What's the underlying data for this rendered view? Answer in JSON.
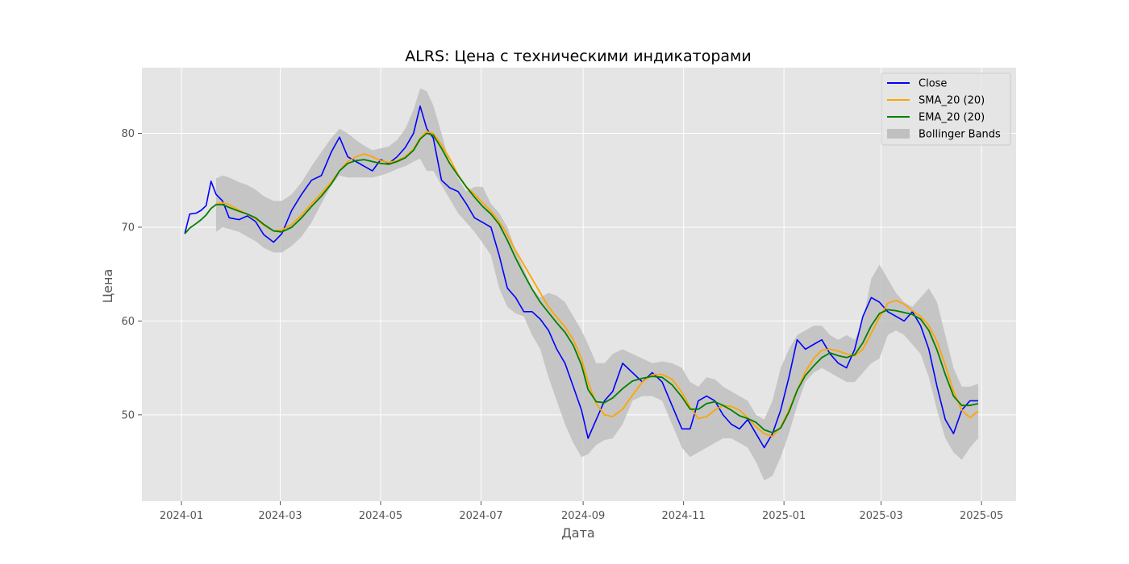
{
  "chart_data": {
    "type": "line",
    "title": "ALRS: Цена с техническими индикаторами",
    "xlabel": "Дата",
    "ylabel": "Цена",
    "x_tick_labels": [
      "2024-01",
      "2024-03",
      "2024-05",
      "2024-07",
      "2024-09",
      "2024-11",
      "2025-01",
      "2025-03",
      "2025-05"
    ],
    "y_tick_labels": [
      "50",
      "60",
      "70",
      "80"
    ],
    "xlim": [
      "2023-12-08",
      "2025-05-22"
    ],
    "ylim": [
      40.8,
      87.0
    ],
    "grid": true,
    "legend_position": "top-right",
    "x": [
      "2024-01-03",
      "2024-01-06",
      "2024-01-10",
      "2024-01-13",
      "2024-01-16",
      "2024-01-19",
      "2024-01-22",
      "2024-01-26",
      "2024-01-30",
      "2024-02-05",
      "2024-02-10",
      "2024-02-15",
      "2024-02-20",
      "2024-02-26",
      "2024-03-02",
      "2024-03-08",
      "2024-03-14",
      "2024-03-20",
      "2024-03-26",
      "2024-04-01",
      "2024-04-06",
      "2024-04-11",
      "2024-04-16",
      "2024-04-21",
      "2024-04-26",
      "2024-05-01",
      "2024-05-06",
      "2024-05-11",
      "2024-05-16",
      "2024-05-21",
      "2024-05-25",
      "2024-05-29",
      "2024-06-02",
      "2024-06-07",
      "2024-06-12",
      "2024-06-17",
      "2024-06-22",
      "2024-06-27",
      "2024-07-02",
      "2024-07-07",
      "2024-07-12",
      "2024-07-17",
      "2024-07-22",
      "2024-07-27",
      "2024-08-01",
      "2024-08-06",
      "2024-08-11",
      "2024-08-16",
      "2024-08-21",
      "2024-08-26",
      "2024-08-31",
      "2024-09-04",
      "2024-09-09",
      "2024-09-14",
      "2024-09-19",
      "2024-09-25",
      "2024-10-01",
      "2024-10-07",
      "2024-10-13",
      "2024-10-19",
      "2024-10-25",
      "2024-10-31",
      "2024-11-05",
      "2024-11-10",
      "2024-11-15",
      "2024-11-20",
      "2024-11-25",
      "2024-11-30",
      "2024-12-05",
      "2024-12-10",
      "2024-12-15",
      "2024-12-20",
      "2024-12-25",
      "2024-12-30",
      "2025-01-04",
      "2025-01-09",
      "2025-01-14",
      "2025-01-19",
      "2025-01-24",
      "2025-01-29",
      "2025-02-03",
      "2025-02-08",
      "2025-02-13",
      "2025-02-18",
      "2025-02-23",
      "2025-02-28",
      "2025-03-05",
      "2025-03-10",
      "2025-03-15",
      "2025-03-20",
      "2025-03-25",
      "2025-03-30",
      "2025-04-04",
      "2025-04-09",
      "2025-04-14",
      "2025-04-19",
      "2025-04-24",
      "2025-04-29"
    ],
    "series": [
      {
        "name": "Close",
        "color": "#0000ff",
        "values": [
          69.3,
          71.4,
          71.5,
          71.8,
          72.3,
          74.9,
          73.5,
          72.8,
          71.0,
          70.8,
          71.2,
          70.6,
          69.2,
          68.4,
          69.3,
          71.8,
          73.5,
          75.0,
          75.5,
          78.0,
          79.6,
          77.5,
          77.0,
          76.5,
          76.0,
          77.2,
          76.8,
          77.5,
          78.5,
          80.0,
          82.9,
          80.5,
          79.5,
          75.0,
          74.2,
          73.8,
          72.5,
          71.0,
          70.5,
          70.0,
          67.0,
          63.5,
          62.5,
          61.0,
          61.0,
          60.2,
          59.0,
          57.0,
          55.5,
          53.0,
          50.5,
          47.5,
          49.5,
          51.5,
          52.5,
          55.5,
          54.5,
          53.5,
          54.5,
          53.5,
          51.0,
          48.5,
          48.5,
          51.5,
          52.0,
          51.5,
          50.0,
          49.0,
          48.5,
          49.5,
          48.0,
          46.5,
          48.0,
          50.5,
          54.0,
          58.0,
          57.0,
          57.5,
          58.0,
          56.5,
          55.5,
          55.0,
          57.0,
          60.5,
          62.5,
          62.0,
          61.0,
          60.5,
          60.0,
          61.0,
          59.5,
          57.0,
          53.0,
          49.5,
          48.0,
          50.5,
          51.5,
          51.5
        ]
      },
      {
        "name": "SMA_20 (20)",
        "color": "#ffa500",
        "values": [
          null,
          null,
          null,
          null,
          null,
          null,
          72.5,
          72.6,
          72.4,
          71.8,
          71.4,
          70.9,
          70.2,
          69.6,
          69.7,
          70.3,
          71.3,
          72.5,
          73.6,
          74.8,
          76.0,
          77.0,
          77.5,
          77.8,
          77.5,
          77.1,
          76.9,
          77.1,
          77.5,
          78.3,
          79.5,
          80.2,
          80.0,
          78.8,
          77.3,
          75.6,
          74.3,
          73.5,
          72.6,
          71.7,
          70.6,
          69.2,
          67.5,
          66.0,
          64.5,
          63.0,
          61.5,
          60.4,
          59.4,
          58.0,
          56.0,
          53.5,
          51.2,
          50.0,
          49.8,
          50.6,
          52.1,
          53.5,
          54.3,
          54.3,
          53.8,
          52.4,
          50.8,
          49.6,
          49.8,
          50.5,
          51.0,
          50.9,
          50.5,
          49.7,
          48.7,
          48.0,
          47.7,
          48.7,
          50.5,
          52.6,
          54.6,
          56.0,
          56.9,
          57.0,
          56.8,
          56.5,
          56.3,
          57.0,
          58.7,
          60.4,
          61.9,
          62.2,
          61.8,
          61.1,
          60.5,
          59.5,
          57.8,
          55.3,
          52.5,
          50.5,
          49.7,
          50.4
        ]
      },
      {
        "name": "EMA_20 (20)",
        "color": "#008000",
        "values": [
          69.3,
          69.9,
          70.4,
          70.8,
          71.3,
          72.0,
          72.4,
          72.4,
          72.1,
          71.7,
          71.4,
          71.0,
          70.3,
          69.6,
          69.5,
          70.0,
          71.0,
          72.2,
          73.3,
          74.6,
          76.0,
          76.8,
          77.1,
          77.2,
          77.0,
          76.8,
          76.7,
          77.0,
          77.4,
          78.2,
          79.4,
          80.0,
          79.8,
          78.4,
          76.8,
          75.5,
          74.3,
          73.2,
          72.2,
          71.4,
          70.3,
          68.6,
          66.7,
          65.0,
          63.4,
          62.0,
          60.9,
          59.8,
          58.8,
          57.4,
          55.3,
          52.7,
          51.4,
          51.3,
          51.8,
          52.8,
          53.6,
          53.9,
          54.1,
          54.0,
          53.2,
          51.9,
          50.6,
          50.6,
          51.2,
          51.4,
          51.0,
          50.5,
          49.9,
          49.6,
          49.2,
          48.4,
          48.1,
          48.6,
          50.3,
          52.6,
          54.2,
          55.2,
          56.1,
          56.6,
          56.3,
          56.1,
          56.4,
          57.7,
          59.5,
          60.8,
          61.2,
          61.1,
          60.9,
          60.7,
          60.2,
          59.0,
          56.9,
          54.3,
          52.0,
          51.0,
          51.0,
          51.2
        ]
      },
      {
        "name": "Bollinger Bands",
        "color": "#c0c0c0",
        "upper": [
          null,
          null,
          null,
          null,
          null,
          null,
          75.2,
          75.5,
          75.3,
          74.8,
          74.5,
          74.0,
          73.3,
          72.8,
          72.8,
          73.5,
          74.8,
          76.5,
          78.0,
          79.5,
          80.5,
          80.0,
          79.3,
          78.7,
          78.2,
          78.4,
          78.6,
          79.3,
          80.5,
          82.5,
          84.8,
          84.5,
          83.0,
          80.0,
          76.8,
          75.2,
          73.8,
          74.3,
          74.3,
          72.5,
          71.5,
          70.0,
          67.5,
          65.5,
          63.5,
          62.5,
          63.0,
          62.7,
          62.0,
          60.5,
          59.0,
          57.5,
          55.5,
          55.5,
          56.5,
          57.0,
          56.5,
          56.0,
          55.5,
          55.7,
          55.5,
          55.0,
          53.5,
          53.0,
          54.0,
          53.8,
          53.0,
          52.5,
          52.0,
          51.5,
          50.0,
          49.5,
          51.5,
          55.0,
          57.0,
          58.5,
          59.0,
          59.5,
          59.5,
          58.5,
          58.0,
          58.5,
          58.0,
          60.0,
          64.5,
          66.0,
          64.5,
          63.0,
          62.0,
          61.5,
          62.5,
          63.5,
          62.0,
          58.5,
          55.0,
          53.0,
          53.0,
          53.3
        ],
        "lower": [
          null,
          null,
          null,
          null,
          null,
          null,
          69.5,
          70.0,
          69.8,
          69.5,
          69.0,
          68.5,
          67.8,
          67.3,
          67.3,
          68.0,
          69.0,
          70.5,
          72.5,
          74.5,
          75.5,
          75.3,
          75.3,
          75.3,
          75.3,
          75.5,
          75.8,
          76.2,
          76.5,
          77.0,
          77.3,
          76.0,
          76.0,
          74.5,
          73.0,
          71.5,
          70.5,
          69.5,
          68.3,
          67.0,
          63.5,
          61.5,
          60.8,
          60.5,
          58.5,
          57.0,
          54.0,
          51.5,
          49.0,
          47.0,
          45.5,
          45.8,
          46.8,
          47.3,
          47.5,
          49.0,
          51.5,
          52.0,
          52.0,
          51.5,
          49.0,
          46.5,
          45.5,
          46.0,
          46.5,
          47.0,
          47.5,
          47.5,
          47.0,
          46.5,
          45.0,
          43.0,
          43.5,
          45.5,
          48.0,
          51.0,
          53.5,
          54.5,
          55.0,
          54.5,
          54.0,
          53.5,
          53.5,
          54.5,
          55.5,
          56.0,
          58.5,
          59.0,
          58.5,
          57.5,
          56.5,
          54.0,
          50.5,
          47.5,
          46.0,
          45.2,
          46.5,
          47.5
        ]
      }
    ]
  }
}
